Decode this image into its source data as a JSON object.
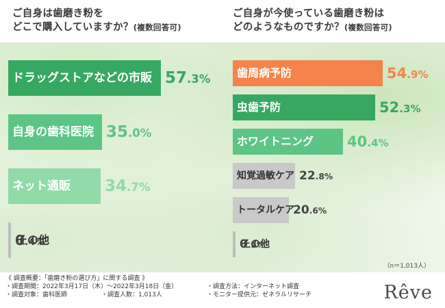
{
  "chart_data": [
    {
      "type": "bar",
      "orientation": "horizontal",
      "title_lines": [
        "ご自身は歯磨き粉を",
        "どこで購入していますか？"
      ],
      "title_note": "(複数回答可)",
      "unit": "%",
      "categories": [
        "ドラッグストアなどの市販",
        "自身の歯科医院",
        "ネット通販",
        "その他"
      ],
      "values": [
        57.3,
        35.0,
        34.7,
        0.4
      ],
      "colors": [
        "#36a862",
        "#5cc585",
        "#90dba8",
        "#c9c9c9"
      ]
    },
    {
      "type": "bar",
      "orientation": "horizontal",
      "title_lines": [
        "ご自身が今使っている歯磨き粉は",
        "どのようなものですか？"
      ],
      "title_note": "(複数回答可)",
      "unit": "%",
      "sample": "（n＝1,013人）",
      "categories": [
        "歯周病予防",
        "虫歯予防",
        "ホワイトニング",
        "知覚過敏ケア",
        "トータルケア",
        "その他"
      ],
      "values": [
        54.9,
        52.3,
        40.4,
        22.8,
        20.6,
        0.5
      ],
      "colors": [
        "#f4844b",
        "#36a862",
        "#5cc585",
        "#c9c9c9",
        "#c9c9c9",
        "#c9c9c9"
      ]
    }
  ],
  "footer": {
    "overview": "《 調査概要：「歯磨き粉の選び方」に関する調査 》",
    "period": "・調査期間：2022年3月17日（木）～2022年3月18日（金）",
    "method": "・調査方法：インターネット調査",
    "target": "・調査対象：歯科医師",
    "respondents": "・調査人数：1,013人",
    "provider": "・モニター提供元：ゼネラルリサーチ"
  },
  "logo": "Rêve"
}
